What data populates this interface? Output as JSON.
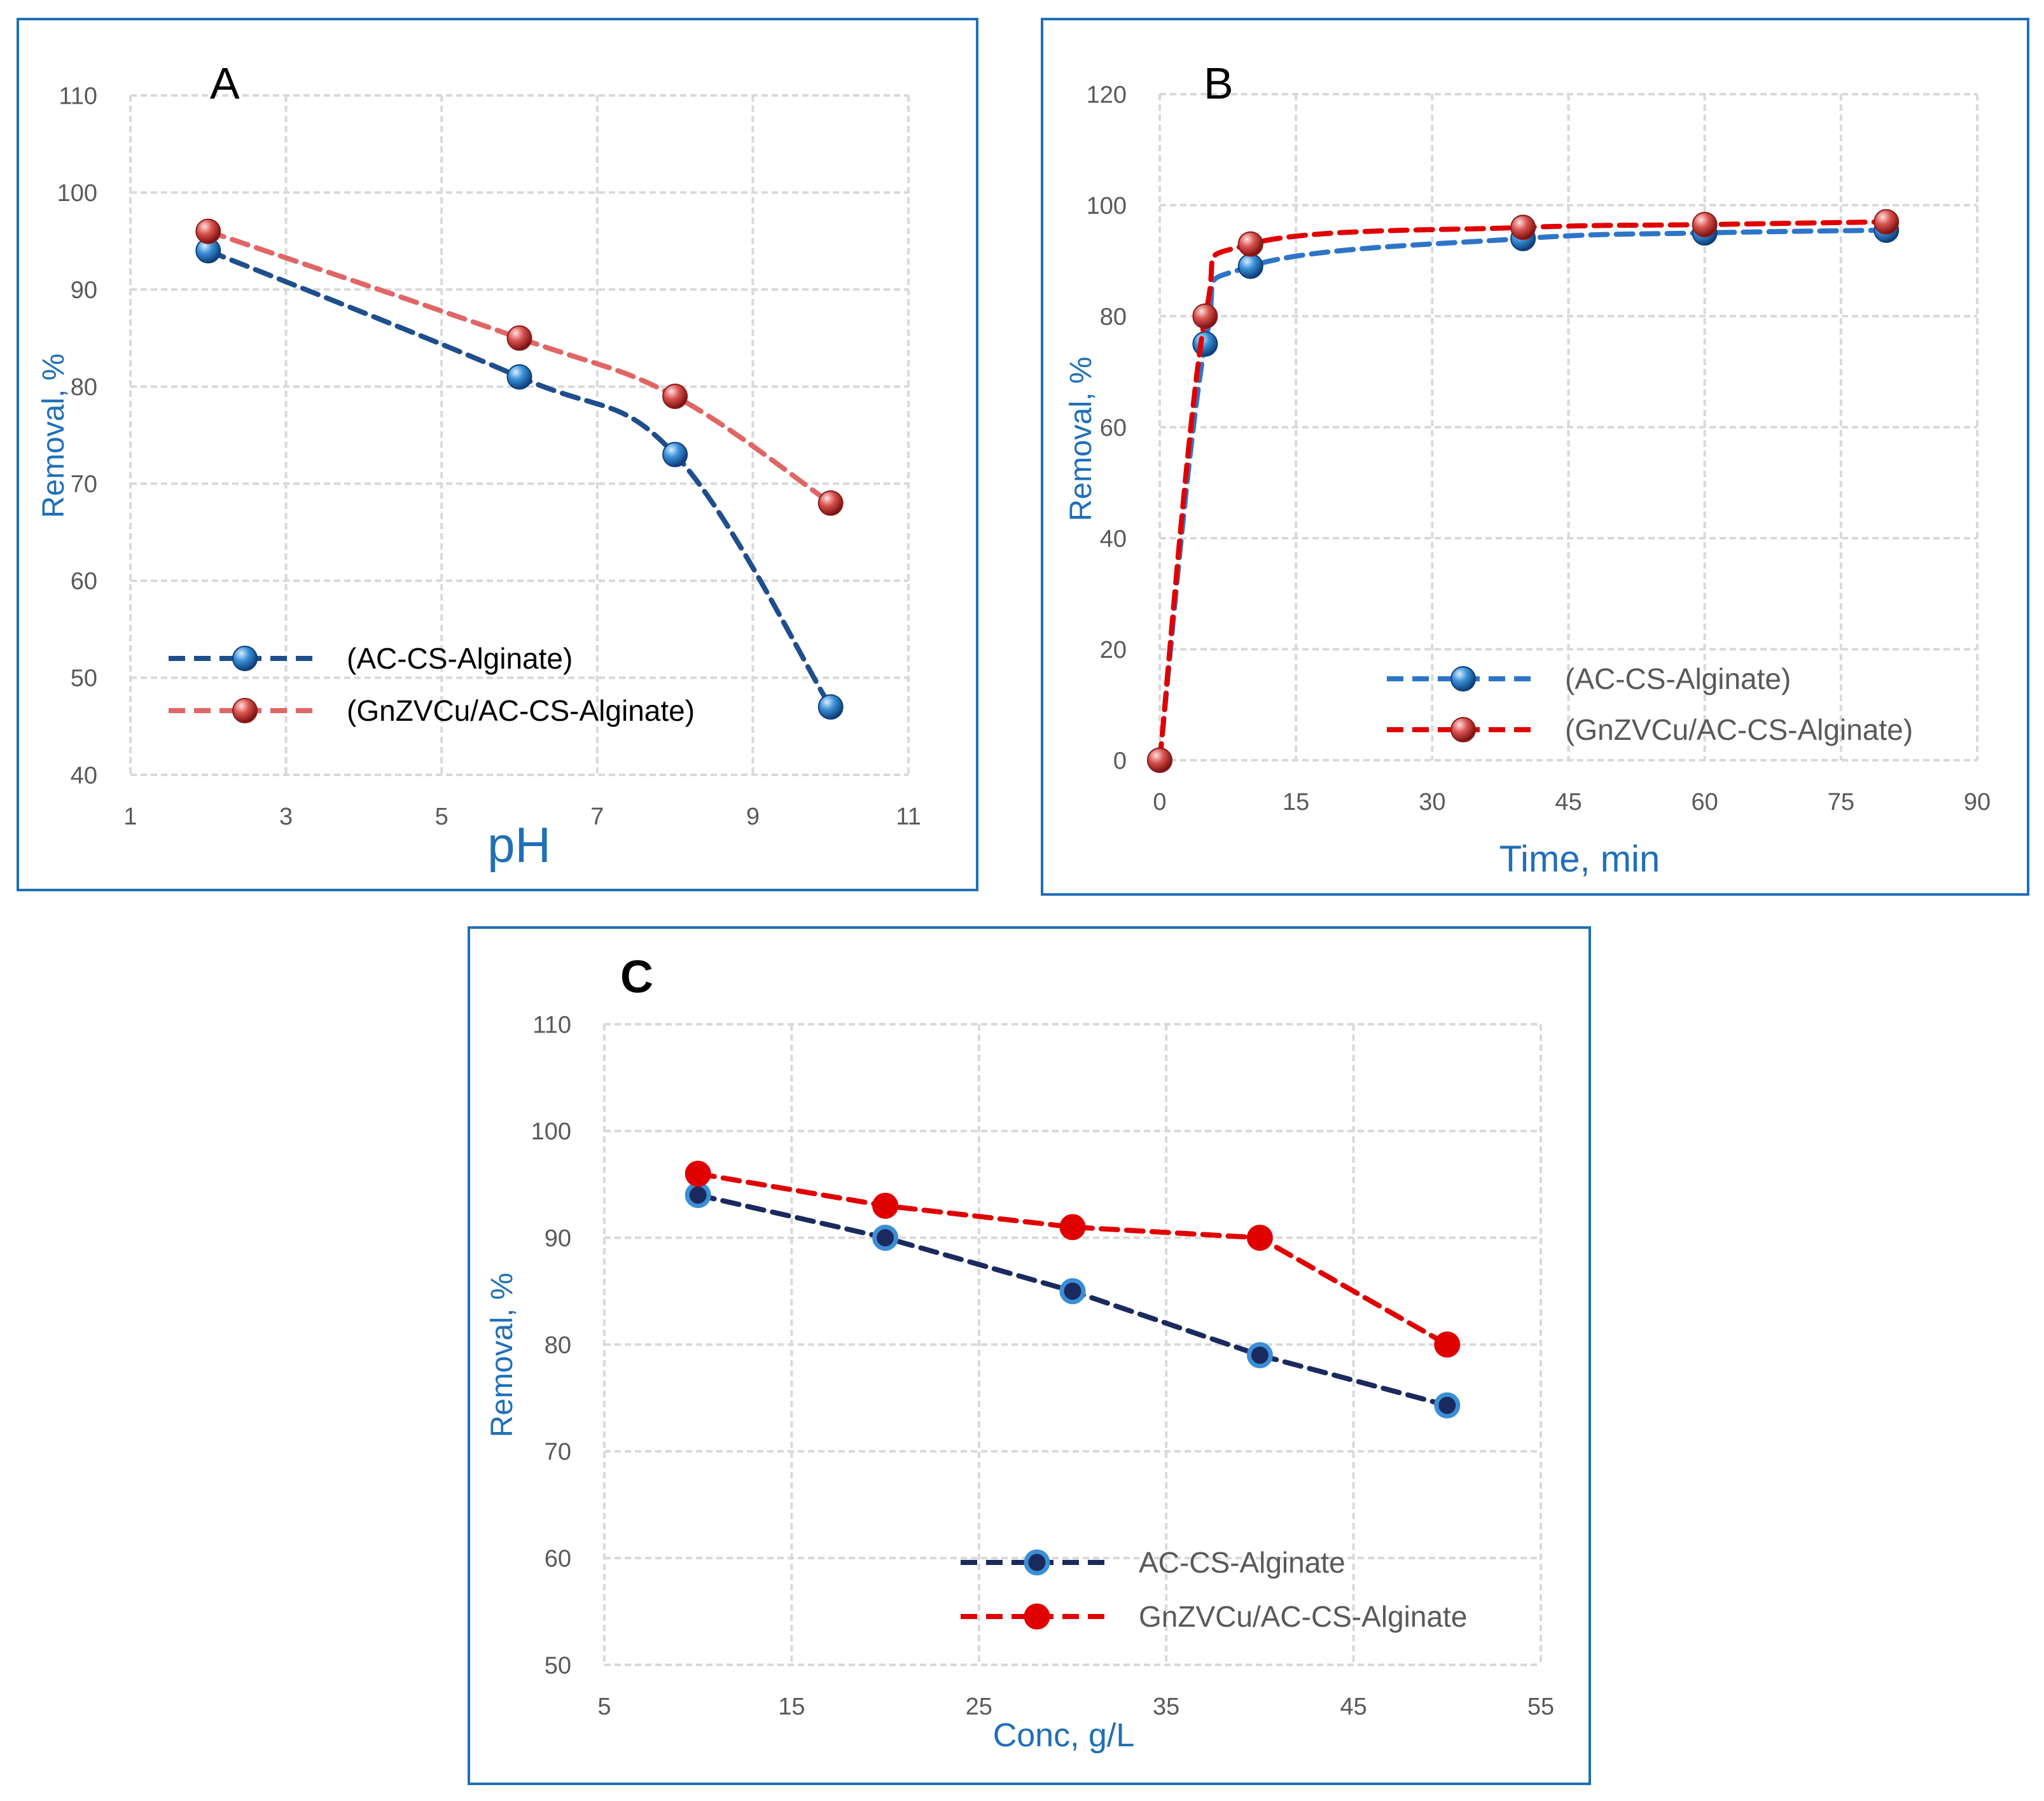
{
  "colors": {
    "frame": "#1f6fb8",
    "axis_title": "#1f6fb8",
    "grid": "#d9d9d9",
    "tick_text": "#595959"
  },
  "chart_data": [
    {
      "panel": "A",
      "type": "line",
      "xlabel": "pH",
      "ylabel": "Removal, %",
      "xlim": [
        1,
        11
      ],
      "ylim": [
        40,
        110
      ],
      "xticks": [
        1,
        3,
        5,
        7,
        9,
        11
      ],
      "yticks": [
        40,
        50,
        60,
        70,
        80,
        90,
        100,
        110
      ],
      "grid": true,
      "legend_position": "bottom-left",
      "series": [
        {
          "name": "(AC-CS-Alginate)",
          "x": [
            2,
            6,
            8,
            10
          ],
          "y": [
            94,
            81,
            73,
            47
          ],
          "color": "#1f4e8c",
          "marker_color": "#3a8fd6",
          "style": "dashed-smooth"
        },
        {
          "name": "(GnZVCu/AC-CS-Alginate)",
          "x": [
            2,
            6,
            8,
            10
          ],
          "y": [
            96,
            85,
            79,
            68
          ],
          "color": "#e06666",
          "marker_color": "#d9534f",
          "style": "dashed-smooth"
        }
      ]
    },
    {
      "panel": "B",
      "type": "line",
      "xlabel": "Time, min",
      "ylabel": "Removal, %",
      "xlim": [
        0,
        90
      ],
      "ylim": [
        0,
        120
      ],
      "xticks": [
        0,
        15,
        30,
        45,
        60,
        75,
        90
      ],
      "yticks": [
        0,
        20,
        40,
        60,
        80,
        100,
        120
      ],
      "grid": true,
      "legend_position": "bottom-right",
      "series": [
        {
          "name": "(AC-CS-Alginate)",
          "x": [
            0,
            5,
            10,
            40,
            60,
            80
          ],
          "y": [
            0,
            75,
            89,
            94,
            95,
            95.5
          ],
          "color": "#2e75c8",
          "marker_color": "#3a8fd6",
          "style": "dashed-smooth"
        },
        {
          "name": "(GnZVCu/AC-CS-Alginate)",
          "x": [
            0,
            5,
            10,
            40,
            60,
            80
          ],
          "y": [
            0,
            80,
            93,
            96,
            96.5,
            97
          ],
          "color": "#e00000",
          "marker_color": "#d9534f",
          "style": "dashed-smooth"
        }
      ]
    },
    {
      "panel": "C",
      "type": "line",
      "xlabel": "Conc, g/L",
      "ylabel": "Removal, %",
      "xlim": [
        5,
        55
      ],
      "ylim": [
        50,
        110
      ],
      "xticks": [
        5,
        15,
        25,
        35,
        45,
        55
      ],
      "yticks": [
        50,
        60,
        70,
        80,
        90,
        100,
        110
      ],
      "grid": true,
      "legend_position": "bottom-center",
      "series": [
        {
          "name": "AC-CS-Alginate",
          "x": [
            10,
            20,
            30,
            40,
            50
          ],
          "y": [
            94,
            90,
            85,
            79,
            74.3
          ],
          "color": "#1b2a5e",
          "marker_color": "#3a8fd6",
          "style": "dashed"
        },
        {
          "name": "GnZVCu/AC-CS-Alginate",
          "x": [
            10,
            20,
            30,
            40,
            50
          ],
          "y": [
            96,
            93,
            91,
            90,
            80
          ],
          "color": "#e00000",
          "marker_color": "#e00000",
          "style": "dashed"
        }
      ]
    }
  ]
}
